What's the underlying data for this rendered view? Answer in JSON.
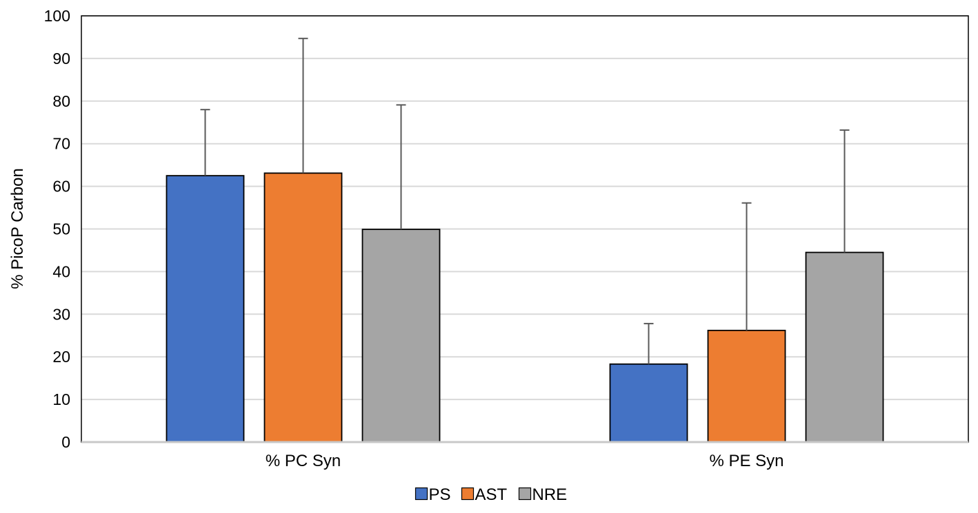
{
  "chart_data": {
    "type": "bar",
    "title": "",
    "xlabel": "",
    "ylabel": "% PicoP Carbon",
    "ylim": [
      0,
      100
    ],
    "yticks": [
      0,
      10,
      20,
      30,
      40,
      50,
      60,
      70,
      80,
      90,
      100
    ],
    "grid": true,
    "legend_position": "bottom",
    "categories": [
      "% PC Syn",
      "% PE Syn"
    ],
    "series": [
      {
        "name": "PS",
        "color": "#4472C4",
        "values": [
          62.5,
          18.3
        ],
        "error_upper": [
          78.0,
          27.8
        ]
      },
      {
        "name": "AST",
        "color": "#ED7D31",
        "values": [
          63.1,
          26.2
        ],
        "error_upper": [
          94.7,
          56.1
        ]
      },
      {
        "name": "NRE",
        "color": "#A5A5A5",
        "values": [
          49.9,
          44.5
        ],
        "error_upper": [
          79.1,
          73.2
        ]
      }
    ]
  }
}
